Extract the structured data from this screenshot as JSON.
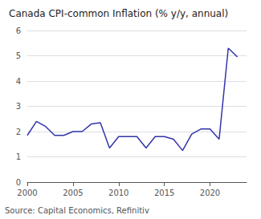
{
  "chart_data": {
    "type": "line",
    "title": "Canada CPI-common Inflation (% y/y, annual)",
    "source": "Source: Capital Economics, Refinitiv",
    "color": "#3333aa",
    "x": [
      2000,
      2001,
      2002,
      2003,
      2004,
      2005,
      2006,
      2007,
      2008,
      2009,
      2010,
      2011,
      2012,
      2013,
      2014,
      2015,
      2016,
      2017,
      2018,
      2019,
      2020,
      2021,
      2022,
      2023
    ],
    "values": [
      1.85,
      2.4,
      2.2,
      1.85,
      1.85,
      2.0,
      2.0,
      2.3,
      2.35,
      1.35,
      1.8,
      1.8,
      1.8,
      1.35,
      1.8,
      1.8,
      1.7,
      1.25,
      1.9,
      2.1,
      2.1,
      1.7,
      5.3,
      4.95
    ],
    "xlim": [
      2000,
      2024
    ],
    "xticks": [
      2000,
      2005,
      2010,
      2015,
      2020
    ],
    "ylim": [
      0,
      6
    ],
    "yticks": [
      0,
      1,
      2,
      3,
      4,
      5,
      6
    ],
    "grid": true
  }
}
